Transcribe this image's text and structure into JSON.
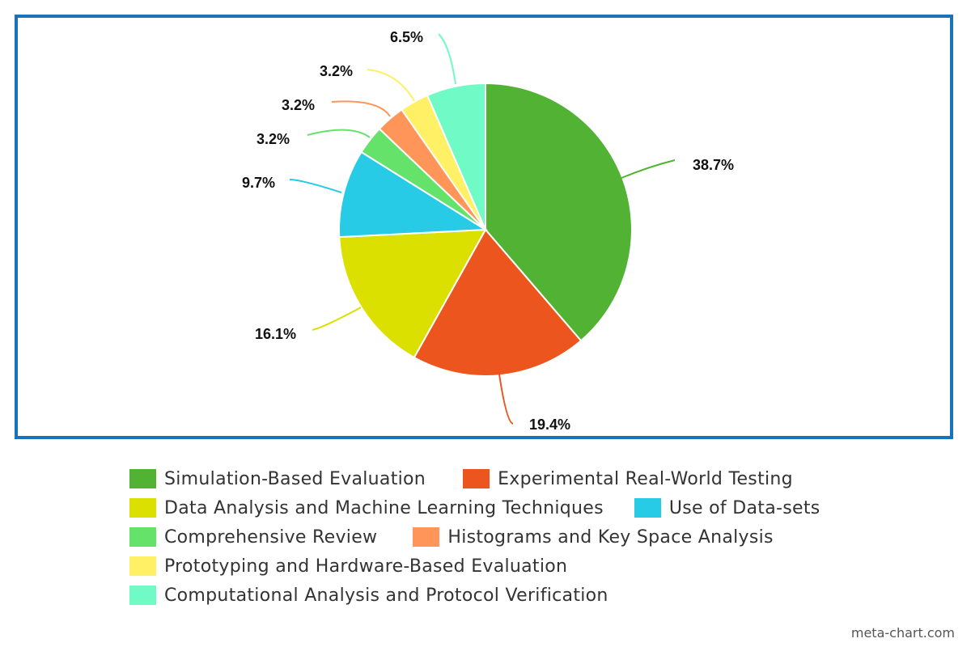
{
  "chart_data": {
    "type": "pie",
    "title": "",
    "slices": [
      {
        "label": "Simulation-Based Evaluation",
        "value": 38.7,
        "display": "38.7%",
        "color": "#52b234"
      },
      {
        "label": "Experimental Real-World Testing",
        "value": 19.4,
        "display": "19.4%",
        "color": "#ec561e"
      },
      {
        "label": "Data Analysis and Machine Learning Techniques",
        "value": 16.1,
        "display": "16.1%",
        "color": "#dce000"
      },
      {
        "label": "Use of Data-sets",
        "value": 9.7,
        "display": "9.7%",
        "color": "#27cbe6"
      },
      {
        "label": "Comprehensive Review",
        "value": 3.2,
        "display": "3.2%",
        "color": "#64e26a"
      },
      {
        "label": "Histograms and Key Space Analysis",
        "value": 3.2,
        "display": "3.2%",
        "color": "#ff9558"
      },
      {
        "label": "Prototyping and Hardware-Based Evaluation",
        "value": 3.2,
        "display": "3.2%",
        "color": "#fff066"
      },
      {
        "label": "Computational Analysis and Protocol Verification",
        "value": 6.5,
        "display": "6.5%",
        "color": "#6ffac6"
      }
    ],
    "start_angle": "12 o'clock",
    "direction": "clockwise",
    "legend_position": "bottom"
  },
  "colors": {
    "frame_border": "#1a72bb"
  },
  "watermark": "meta-chart.com"
}
